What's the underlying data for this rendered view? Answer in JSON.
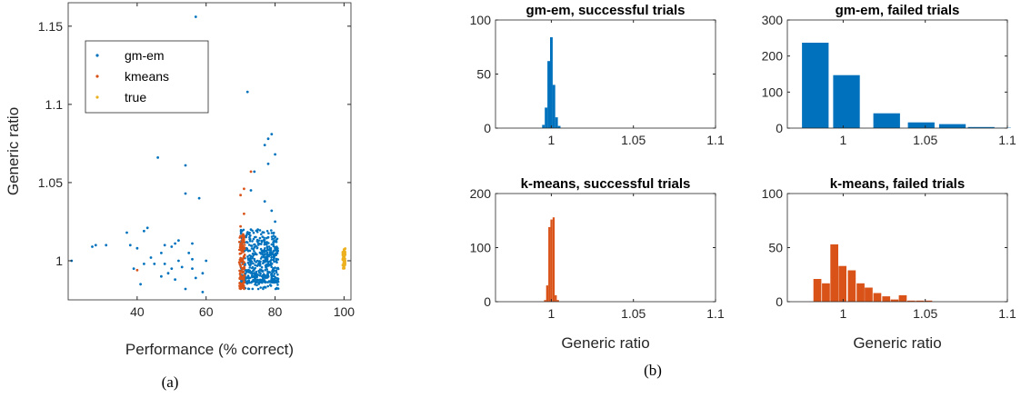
{
  "colors": {
    "gm_em": "#0072BD",
    "kmeans": "#D95319",
    "true": "#EDB120",
    "axis": "#262626"
  },
  "captions": {
    "a": "(a)",
    "b": "(b)"
  },
  "chart_data": [
    {
      "id": "scatter",
      "type": "scatter",
      "title": "",
      "xlabel": "Performance (% correct)",
      "ylabel": "Generic ratio",
      "xlim": [
        20,
        102
      ],
      "ylim": [
        0.975,
        1.165
      ],
      "xticks": [
        40,
        60,
        80,
        100
      ],
      "yticks": [
        1,
        1.05,
        1.1,
        1.15
      ],
      "yticklabels": [
        "1",
        "1.05",
        "1.1",
        "1.15"
      ],
      "grid": false,
      "legend_position": "top-left",
      "series": [
        {
          "name": "gm-em",
          "color_key": "gm_em",
          "points": [
            [
              21,
              1.0
            ],
            [
              27,
              1.009
            ],
            [
              28,
              1.01
            ],
            [
              31,
              1.01
            ],
            [
              37,
              1.018
            ],
            [
              38,
              1.01
            ],
            [
              39,
              0.995
            ],
            [
              40,
              1.008
            ],
            [
              41,
              0.985
            ],
            [
              42,
              0.998
            ],
            [
              42,
              1.019
            ],
            [
              43,
              1.021
            ],
            [
              44,
              1.002
            ],
            [
              45,
              0.998
            ],
            [
              46,
              1.066
            ],
            [
              47,
              1.005
            ],
            [
              47,
              0.99
            ],
            [
              48,
              1.01
            ],
            [
              48,
              0.998
            ],
            [
              49,
              0.992
            ],
            [
              50,
              1.009
            ],
            [
              50,
              0.995
            ],
            [
              51,
              1.011
            ],
            [
              51,
              0.988
            ],
            [
              52,
              1.013
            ],
            [
              52,
              1.0
            ],
            [
              53,
              0.996
            ],
            [
              54,
              1.061
            ],
            [
              54,
              1.043
            ],
            [
              54,
              0.982
            ],
            [
              55,
              1.005
            ],
            [
              56,
              1.011
            ],
            [
              56,
              1.001
            ],
            [
              56,
              0.995
            ],
            [
              57,
              1.156
            ],
            [
              57,
              0.989
            ],
            [
              58,
              1.04
            ],
            [
              59,
              0.992
            ],
            [
              59,
              0.98
            ],
            [
              60,
              1.0
            ],
            [
              72,
              1.108
            ],
            [
              77,
              1.074
            ],
            [
              78,
              1.078
            ],
            [
              79,
              1.081
            ],
            [
              78,
              1.062
            ],
            [
              80,
              1.068
            ],
            [
              74,
              1.057
            ],
            [
              73,
              1.045
            ],
            [
              77,
              1.038
            ],
            [
              79,
              1.032
            ],
            [
              75,
              1.02
            ],
            [
              78,
              1.015
            ],
            [
              80,
              1.025
            ],
            [
              73,
              1.02
            ]
          ]
        },
        {
          "name": "kmeans",
          "color_key": "kmeans",
          "points": [
            [
              40,
              0.994
            ],
            [
              70,
              1.042
            ],
            [
              71,
              1.046
            ],
            [
              71,
              1.03
            ],
            [
              70,
              1.022
            ],
            [
              73,
              1.057
            ],
            [
              71,
              1.015
            ],
            [
              70,
              1.008
            ],
            [
              71,
              0.999
            ],
            [
              70,
              0.99
            ],
            [
              70,
              0.983
            ]
          ]
        },
        {
          "name": "true",
          "color_key": "true",
          "points": [
            [
              100,
              0.996
            ],
            [
              100,
              0.998
            ],
            [
              100,
              1.0
            ],
            [
              100,
              1.002
            ],
            [
              100,
              1.004
            ],
            [
              100,
              1.006
            ],
            [
              100,
              1.007
            ],
            [
              100,
              0.997
            ],
            [
              100,
              1.003
            ]
          ]
        }
      ]
    },
    {
      "id": "h1",
      "type": "bar",
      "title": "gm-em, successful trials",
      "xlabel": "",
      "xlim": [
        0.966,
        1.1
      ],
      "ylim": [
        0,
        100
      ],
      "yticks": [
        0,
        50,
        100
      ],
      "xticks": [
        1,
        1.05,
        1.1
      ],
      "xticklabels": [
        "1",
        "1.05",
        "1.1"
      ],
      "bin_width": 0.0016,
      "color_key": "gm_em",
      "x": [
        0.9952,
        0.9968,
        0.9984,
        1.0,
        1.0016,
        1.0032,
        1.0048
      ],
      "values": [
        3,
        19,
        62,
        84,
        40,
        10,
        2
      ]
    },
    {
      "id": "h2",
      "type": "bar",
      "title": "gm-em, failed trials",
      "xlabel": "",
      "xlim": [
        0.966,
        1.1
      ],
      "ylim": [
        0,
        300
      ],
      "yticks": [
        0,
        100,
        200,
        300
      ],
      "xticks": [
        1,
        1.05,
        1.1
      ],
      "xticklabels": [
        "1",
        "1.05",
        "1.1"
      ],
      "bin_width": 0.0162,
      "color_key": "gm_em",
      "x": [
        0.983,
        1.002,
        1.0265,
        1.0475,
        1.0665,
        1.084,
        1.094
      ],
      "values": [
        237,
        147,
        41,
        16,
        11,
        3,
        1
      ]
    },
    {
      "id": "h3",
      "type": "bar",
      "title": "k-means, successful trials",
      "xlabel": "Generic ratio",
      "xlim": [
        0.966,
        1.1
      ],
      "ylim": [
        0,
        200
      ],
      "yticks": [
        0,
        100,
        200
      ],
      "xticks": [
        1,
        1.05,
        1.1
      ],
      "xticklabels": [
        "1",
        "1.05",
        "1.1"
      ],
      "bin_width": 0.0013,
      "color_key": "kmeans",
      "x": [
        0.9962,
        0.9975,
        0.9988,
        1.0001,
        1.0014,
        1.0027,
        1.004
      ],
      "values": [
        3,
        30,
        138,
        152,
        156,
        12,
        3
      ]
    },
    {
      "id": "h4",
      "type": "bar",
      "title": "k-means, failed trials",
      "xlabel": "Generic ratio",
      "xlim": [
        0.966,
        1.1
      ],
      "ylim": [
        0,
        100
      ],
      "yticks": [
        0,
        50,
        100
      ],
      "xticks": [
        1,
        1.05,
        1.1
      ],
      "xticklabels": [
        "1",
        "1.05",
        "1.1"
      ],
      "bin_width": 0.0048,
      "color_key": "kmeans",
      "x": [
        0.9843,
        0.9895,
        0.9946,
        0.9996,
        1.0052,
        1.0106,
        1.0155,
        1.0208,
        1.0262,
        1.0313,
        1.0363,
        1.0415,
        1.0467,
        1.0518
      ],
      "values": [
        21,
        17,
        53,
        33,
        29,
        17,
        13,
        8,
        5,
        2,
        6,
        1,
        1,
        1
      ]
    }
  ]
}
